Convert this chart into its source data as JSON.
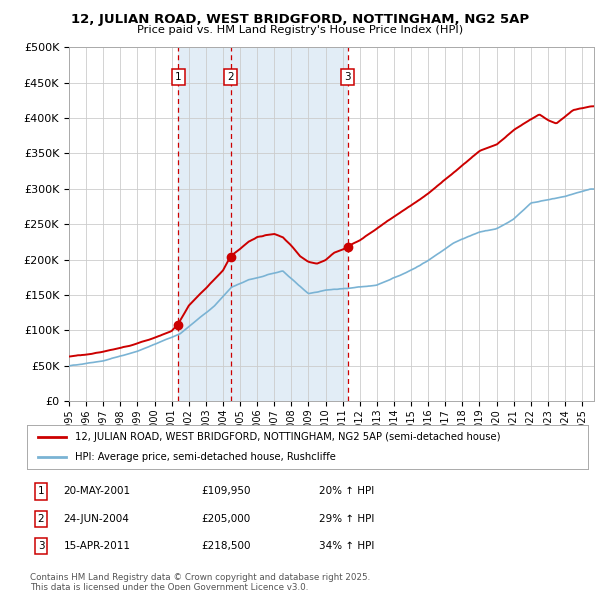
{
  "title1": "12, JULIAN ROAD, WEST BRIDGFORD, NOTTINGHAM, NG2 5AP",
  "title2": "Price paid vs. HM Land Registry's House Price Index (HPI)",
  "hpi_color": "#7ab3d4",
  "price_color": "#cc0000",
  "bg_color": "#ddeaf5",
  "legend_line1": "12, JULIAN ROAD, WEST BRIDGFORD, NOTTINGHAM, NG2 5AP (semi-detached house)",
  "legend_line2": "HPI: Average price, semi-detached house, Rushcliffe",
  "footer1": "Contains HM Land Registry data © Crown copyright and database right 2025.",
  "footer2": "This data is licensed under the Open Government Licence v3.0.",
  "ylim": [
    0,
    500000
  ],
  "yticks": [
    0,
    50000,
    100000,
    150000,
    200000,
    250000,
    300000,
    350000,
    400000,
    450000,
    500000
  ],
  "xstart": 1995.0,
  "xend": 2025.7,
  "transactions": [
    {
      "num": 1,
      "date_label": "20-MAY-2001",
      "price": 109950,
      "year": 2001.38,
      "pct": "20%"
    },
    {
      "num": 2,
      "date_label": "24-JUN-2004",
      "price": 205000,
      "year": 2004.46,
      "pct": "29%"
    },
    {
      "num": 3,
      "date_label": "15-APR-2011",
      "price": 218500,
      "year": 2011.29,
      "pct": "34%"
    }
  ]
}
